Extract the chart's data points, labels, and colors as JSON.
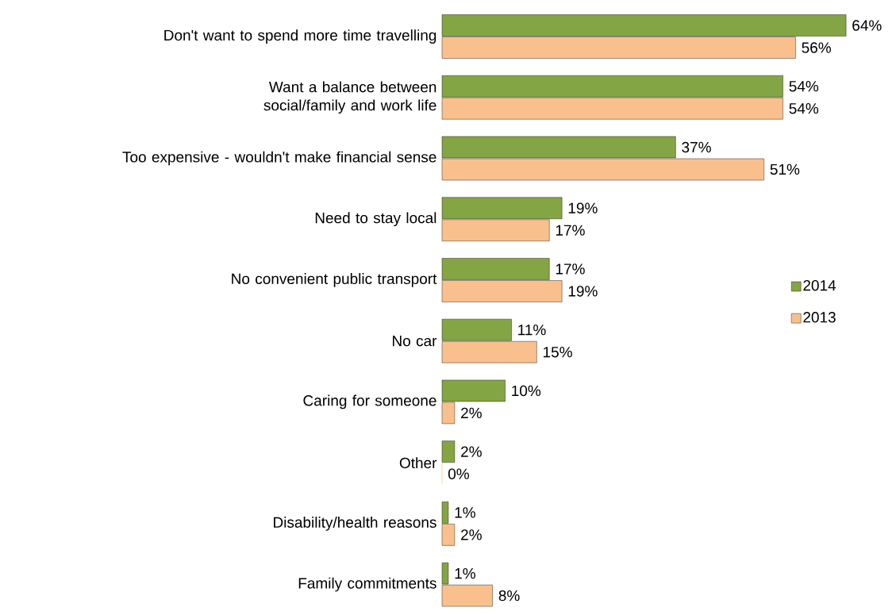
{
  "chart_data": {
    "type": "bar",
    "orientation": "horizontal",
    "legend": "right",
    "categories": [
      "Don't want to spend more time travelling",
      "Want a balance between social/family and work life",
      "Too expensive - wouldn't make financial sense",
      "Need to stay local",
      "No convenient public transport",
      "No car",
      "Caring for someone",
      "Other",
      "Disability/health reasons",
      "Family commitments"
    ],
    "series": [
      {
        "name": "2014",
        "color": "#84a544",
        "values": [
          64,
          54,
          37,
          19,
          17,
          11,
          10,
          2,
          1,
          1
        ],
        "value_labels": [
          "64%",
          "54%",
          "37%",
          "19%",
          "17%",
          "11%",
          "10%",
          "2%",
          "1%",
          "1%"
        ]
      },
      {
        "name": "2013",
        "color": "#f9c08e",
        "values": [
          56,
          54,
          51,
          17,
          19,
          15,
          2,
          0,
          2,
          8
        ],
        "value_labels": [
          "56%",
          "54%",
          "51%",
          "17%",
          "19%",
          "15%",
          "2%",
          "0%",
          "2%",
          "8%"
        ]
      }
    ]
  }
}
